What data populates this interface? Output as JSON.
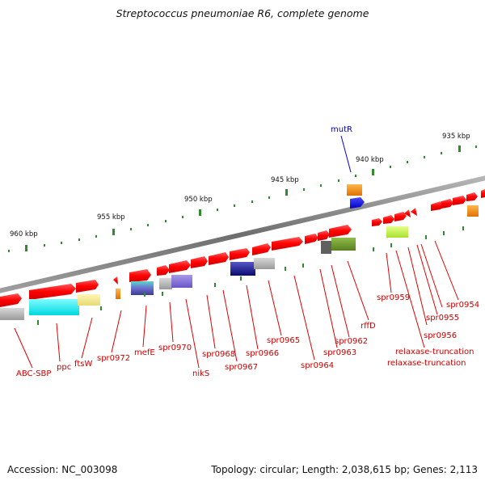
{
  "title": "Streptococcus pneumoniae R6, complete genome",
  "footer": {
    "accession": "Accession: NC_003098",
    "summary": "Topology: circular; Length: 2,038,615 bp; Genes: 2,113"
  },
  "ruler": {
    "labels": [
      "935 kbp",
      "940 kbp",
      "945 kbp",
      "950 kbp",
      "955 kbp",
      "960 kbp"
    ]
  },
  "colors": {
    "backbone": "#808080",
    "gene_forward": "#ff0000",
    "tick": "#2e8b2e",
    "label_red": "#cc0000",
    "label_blue": "#0000cc"
  },
  "genes": [
    {
      "name": "ABC-SBP",
      "color": "#cc0000"
    },
    {
      "name": "ppc",
      "color": "#cc0000"
    },
    {
      "name": "ftsW",
      "color": "#cc0000"
    },
    {
      "name": "spr0972",
      "color": "#cc0000"
    },
    {
      "name": "mefE",
      "color": "#cc0000"
    },
    {
      "name": "spr0970",
      "color": "#cc0000"
    },
    {
      "name": "nikS",
      "color": "#cc0000"
    },
    {
      "name": "spr0968",
      "color": "#cc0000"
    },
    {
      "name": "spr0967",
      "color": "#cc0000"
    },
    {
      "name": "spr0966",
      "color": "#cc0000"
    },
    {
      "name": "spr0965",
      "color": "#cc0000"
    },
    {
      "name": "spr0964",
      "color": "#cc0000"
    },
    {
      "name": "spr0963",
      "color": "#cc0000"
    },
    {
      "name": "spr0962",
      "color": "#cc0000"
    },
    {
      "name": "rffD",
      "color": "#cc0000"
    },
    {
      "name": "spr0959",
      "color": "#cc0000"
    },
    {
      "name": "spr0956",
      "color": "#cc0000"
    },
    {
      "name": "spr0955",
      "color": "#cc0000"
    },
    {
      "name": "spr0954",
      "color": "#cc0000"
    },
    {
      "name": "relaxase-truncation",
      "color": "#cc0000"
    },
    {
      "name": "relaxase-truncation",
      "color": "#cc0000"
    },
    {
      "name": "mutR",
      "color": "#0000cc"
    }
  ]
}
